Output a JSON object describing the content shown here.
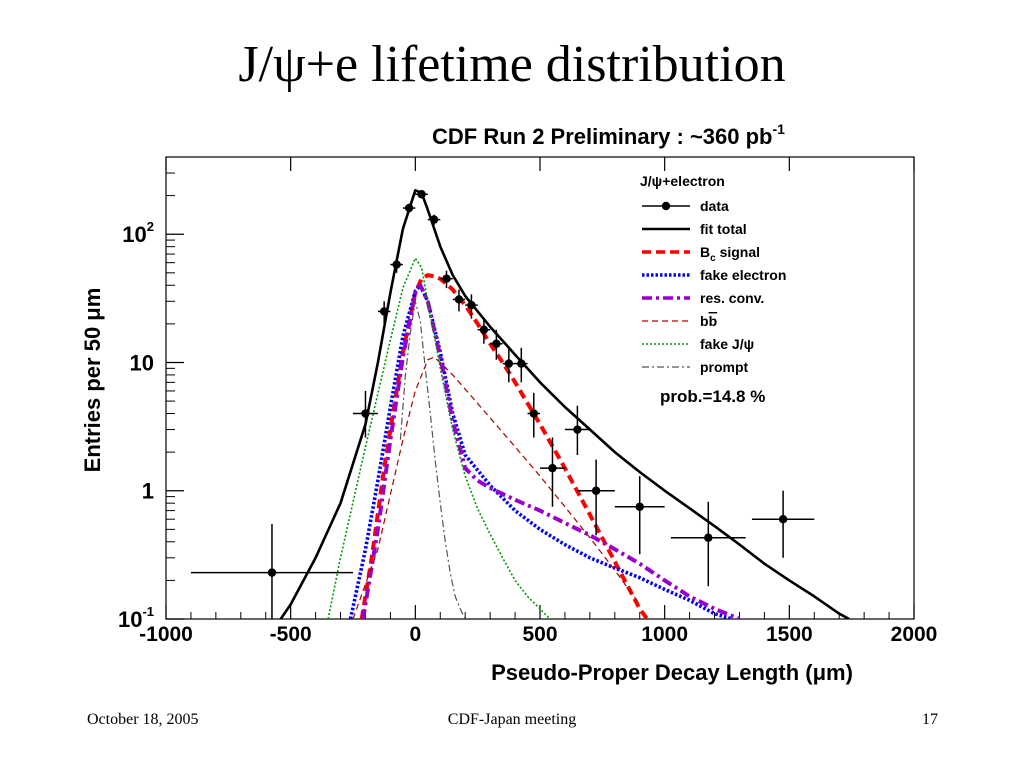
{
  "slide": {
    "title": "J/ψ+e lifetime distribution",
    "footer_date": "October 18, 2005",
    "footer_meeting": "CDF-Japan meeting",
    "footer_page": "17"
  },
  "chart_data": {
    "type": "scatter",
    "title": "CDF Run 2 Preliminary : ~360 pb",
    "title_superscript": "-1",
    "xlabel": "Pseudo-Proper Decay Length (μm)",
    "ylabel": "Entries per 50 μm",
    "xlim": [
      -1000,
      2000
    ],
    "ylim": [
      0.1,
      400
    ],
    "yscale": "log",
    "x_ticks": [
      -1000,
      -500,
      0,
      500,
      1000,
      1500,
      2000
    ],
    "y_ticks": [
      {
        "value": 0.1,
        "base": "10",
        "exp": "-1"
      },
      {
        "value": 1,
        "base": "1",
        "exp": ""
      },
      {
        "value": 10,
        "base": "10",
        "exp": ""
      },
      {
        "value": 100,
        "base": "10",
        "exp": "2"
      }
    ],
    "legend_title": "J/ψ+electron",
    "legend_position": "top-right",
    "annotation": "prob.=14.8 %",
    "data_points": [
      {
        "x": -575,
        "y": 0.23,
        "xerr": 325,
        "ylo": 0.1,
        "yhi": 0.55
      },
      {
        "x": -200,
        "y": 4,
        "xerr": 50,
        "ylo": 2.6,
        "yhi": 6.0
      },
      {
        "x": -125,
        "y": 25,
        "xerr": 25,
        "ylo": 20,
        "yhi": 30
      },
      {
        "x": -75,
        "y": 58,
        "xerr": 25,
        "ylo": 50,
        "yhi": 66
      },
      {
        "x": -25,
        "y": 160,
        "xerr": 25,
        "ylo": 147,
        "yhi": 173
      },
      {
        "x": 25,
        "y": 205,
        "xerr": 25,
        "ylo": 190,
        "yhi": 220
      },
      {
        "x": 75,
        "y": 130,
        "xerr": 25,
        "ylo": 118,
        "yhi": 142
      },
      {
        "x": 125,
        "y": 45,
        "xerr": 25,
        "ylo": 38,
        "yhi": 52
      },
      {
        "x": 175,
        "y": 31,
        "xerr": 25,
        "ylo": 25,
        "yhi": 37
      },
      {
        "x": 225,
        "y": 28,
        "xerr": 25,
        "ylo": 22,
        "yhi": 34
      },
      {
        "x": 275,
        "y": 18,
        "xerr": 25,
        "ylo": 14,
        "yhi": 22
      },
      {
        "x": 325,
        "y": 14,
        "xerr": 25,
        "ylo": 10.5,
        "yhi": 18
      },
      {
        "x": 375,
        "y": 9.8,
        "xerr": 25,
        "ylo": 7,
        "yhi": 13
      },
      {
        "x": 425,
        "y": 9.8,
        "xerr": 25,
        "ylo": 7,
        "yhi": 13
      },
      {
        "x": 475,
        "y": 4,
        "xerr": 25,
        "ylo": 2.6,
        "yhi": 5.8
      },
      {
        "x": 550,
        "y": 1.5,
        "xerr": 50,
        "ylo": 0.75,
        "yhi": 2.6
      },
      {
        "x": 650,
        "y": 3,
        "xerr": 50,
        "ylo": 1.9,
        "yhi": 4.6
      },
      {
        "x": 725,
        "y": 1.0,
        "xerr": 75,
        "ylo": 0.45,
        "yhi": 1.75
      },
      {
        "x": 900,
        "y": 0.75,
        "xerr": 100,
        "ylo": 0.32,
        "yhi": 1.3
      },
      {
        "x": 1175,
        "y": 0.43,
        "xerr": 150,
        "ylo": 0.18,
        "yhi": 0.82
      },
      {
        "x": 1475,
        "y": 0.6,
        "xerr": 125,
        "ylo": 0.3,
        "yhi": 1.0
      }
    ],
    "series": [
      {
        "name": "fit total",
        "color": "#000000",
        "style": "solid",
        "x": [
          -540,
          -500,
          -400,
          -300,
          -200,
          -150,
          -100,
          -50,
          0,
          25,
          50,
          100,
          150,
          200,
          250,
          300,
          400,
          500,
          600,
          700,
          800,
          900,
          1000,
          1100,
          1200,
          1300,
          1400,
          1500,
          1600,
          1700,
          1740
        ],
        "y": [
          0.1,
          0.13,
          0.3,
          0.8,
          3.3,
          10,
          35,
          110,
          220,
          210,
          155,
          80,
          48,
          33,
          25,
          19,
          11.5,
          7,
          4.5,
          3,
          2,
          1.4,
          1.0,
          0.73,
          0.53,
          0.38,
          0.27,
          0.2,
          0.15,
          0.11,
          0.1
        ]
      },
      {
        "name": "B_c signal",
        "label": "signal",
        "label_prefix": "B",
        "label_sub": "c",
        "color": "#ff0000",
        "style": "dashed",
        "x": [
          -215,
          -175,
          -125,
          -50,
          0,
          25,
          50,
          75,
          100,
          150,
          200,
          250,
          300,
          350,
          400,
          500,
          600,
          700,
          800,
          900,
          930
        ],
        "y": [
          0.1,
          0.3,
          1.5,
          12,
          35,
          45,
          48,
          47,
          45,
          37,
          28,
          20,
          14,
          10,
          7,
          3.3,
          1.5,
          0.65,
          0.28,
          0.12,
          0.1
        ]
      },
      {
        "name": "fake electron",
        "color": "#0000ff",
        "style": "dotted",
        "x": [
          -260,
          -200,
          -150,
          -100,
          -50,
          0,
          20,
          50,
          100,
          150,
          200,
          300,
          400,
          500,
          600,
          700,
          800,
          900,
          1000,
          1100,
          1200,
          1270
        ],
        "y": [
          0.1,
          0.35,
          1.2,
          4.5,
          16,
          36,
          40,
          30,
          12,
          4,
          1.9,
          1.1,
          0.7,
          0.5,
          0.38,
          0.3,
          0.25,
          0.21,
          0.17,
          0.14,
          0.11,
          0.1
        ]
      },
      {
        "name": "res. conv.",
        "color": "#9900cc",
        "style": "dashdot",
        "x": [
          -210,
          -150,
          -100,
          -50,
          0,
          20,
          50,
          100,
          150,
          200,
          250,
          300,
          400,
          500,
          600,
          700,
          800,
          900,
          1000,
          1100,
          1200,
          1300
        ],
        "y": [
          0.1,
          0.5,
          2.5,
          11,
          35,
          40,
          30,
          11,
          3.5,
          1.5,
          1.2,
          1.05,
          0.85,
          0.7,
          0.56,
          0.45,
          0.35,
          0.27,
          0.2,
          0.15,
          0.12,
          0.1
        ]
      },
      {
        "name": "b b̄",
        "label": "bb",
        "label_overline": "b",
        "color": "#aa0000",
        "style": "thin-dashed",
        "x": [
          -250,
          -150,
          -50,
          0,
          50,
          75,
          100,
          150,
          200,
          300,
          400,
          500,
          600,
          700,
          800,
          900
        ],
        "y": [
          0.1,
          0.35,
          2.5,
          6,
          10.5,
          11,
          10,
          8,
          6.2,
          3.7,
          2.2,
          1.3,
          0.75,
          0.43,
          0.24,
          0.13
        ]
      },
      {
        "name": "fake J/ψ",
        "color": "#009900",
        "style": "thin-dotted",
        "x": [
          -350,
          -300,
          -200,
          -100,
          -50,
          0,
          25,
          50,
          100,
          150,
          200,
          250,
          300,
          350,
          400,
          450,
          500,
          540
        ],
        "y": [
          0.1,
          0.3,
          2.2,
          15,
          38,
          65,
          55,
          30,
          9,
          3,
          1.3,
          0.72,
          0.46,
          0.3,
          0.2,
          0.15,
          0.12,
          0.1
        ]
      },
      {
        "name": "prompt",
        "color": "#555555",
        "style": "thin-dashdot",
        "x": [
          -60,
          -40,
          -20,
          0,
          20,
          40,
          60,
          80,
          100,
          120,
          140,
          160,
          180,
          200
        ],
        "y": [
          2.5,
          8,
          17,
          30,
          21,
          9,
          4,
          1.7,
          0.8,
          0.4,
          0.23,
          0.15,
          0.12,
          0.1
        ]
      }
    ]
  }
}
